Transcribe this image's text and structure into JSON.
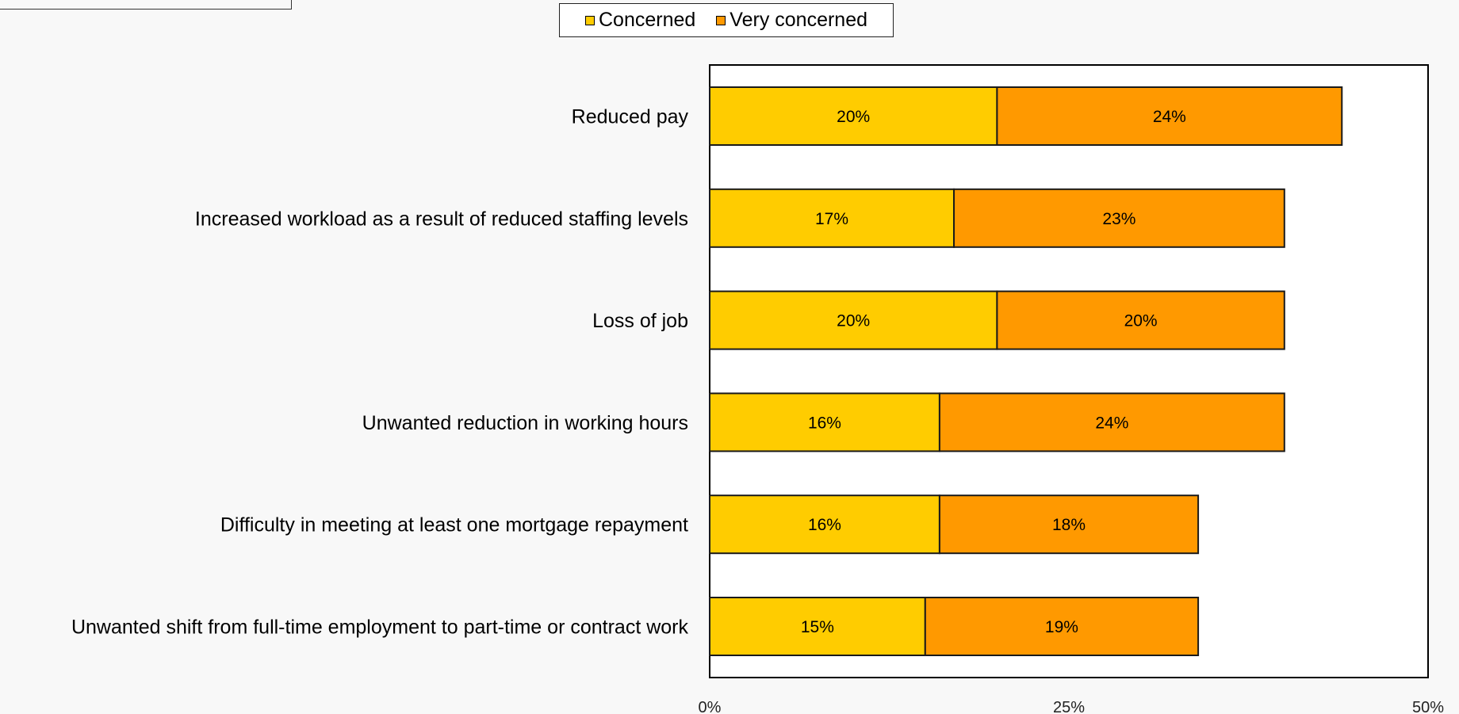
{
  "chart_data": {
    "type": "bar",
    "orientation": "horizontal",
    "stacked": true,
    "categories": [
      "Reduced pay",
      "Increased workload as a result of reduced staffing levels",
      "Loss of job",
      "Unwanted reduction in working hours",
      "Difficulty in meeting at least one mortgage repayment",
      "Unwanted shift from full-time employment to part-time or contract work"
    ],
    "series": [
      {
        "name": "Concerned",
        "color": "#FFCC00",
        "values": [
          20,
          17,
          20,
          16,
          16,
          15
        ],
        "labels": [
          "20%",
          "17%",
          "20%",
          "16%",
          "16%",
          "15%"
        ]
      },
      {
        "name": "Very concerned",
        "color": "#FF9900",
        "values": [
          24,
          23,
          20,
          24,
          18,
          19
        ],
        "labels": [
          "24%",
          "23%",
          "20%",
          "24%",
          "18%",
          "19%"
        ]
      }
    ],
    "xlim": [
      0,
      50
    ],
    "xticks": [
      "0%",
      "25%",
      "50%"
    ],
    "legend_placement": "top-center",
    "grid": false,
    "title": "",
    "xlabel": "",
    "ylabel": ""
  }
}
